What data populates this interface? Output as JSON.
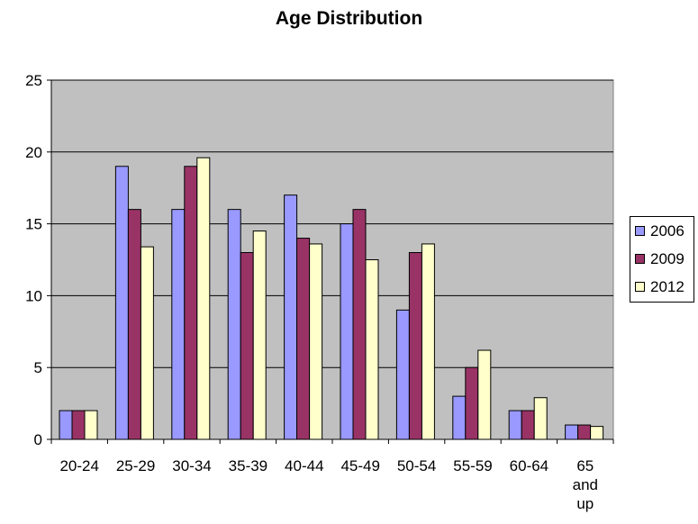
{
  "chart_data": {
    "type": "bar",
    "title": "Age Distribution",
    "xlabel": "",
    "ylabel": "",
    "categories": [
      "20-24",
      "25-29",
      "30-34",
      "35-39",
      "40-44",
      "45-49",
      "50-54",
      "55-59",
      "60-64",
      "65 and up"
    ],
    "series": [
      {
        "name": "2006",
        "color": "#9999ff",
        "values": [
          2,
          19,
          16,
          16,
          17,
          15,
          9,
          3,
          2,
          1
        ]
      },
      {
        "name": "2009",
        "color": "#993366",
        "values": [
          2,
          16,
          19,
          13,
          14,
          16,
          13,
          5,
          2,
          1
        ]
      },
      {
        "name": "2012",
        "color": "#ffffcc",
        "values": [
          2,
          13.4,
          19.6,
          14.5,
          13.6,
          12.5,
          13.6,
          6.2,
          2.9,
          0.9
        ]
      }
    ],
    "ylim": [
      0,
      25
    ],
    "yticks": [
      0,
      5,
      10,
      15,
      20,
      25
    ],
    "grid": true,
    "plot_background": "#c0c0c0",
    "legend_position": "right"
  }
}
